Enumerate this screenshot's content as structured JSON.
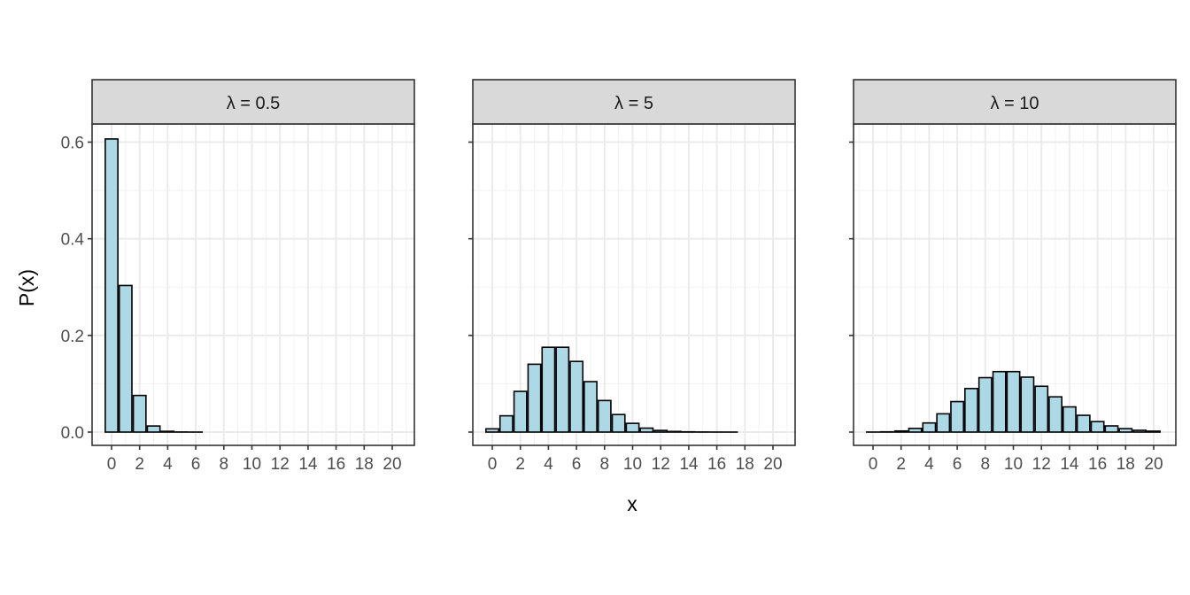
{
  "chart_data": {
    "type": "bar",
    "xlabel": "x",
    "ylabel": "P(x)",
    "ylim": [
      0,
      0.63
    ],
    "yticks": [
      "0.0",
      "0.2",
      "0.4",
      "0.6"
    ],
    "xticks": [
      "0",
      "2",
      "4",
      "6",
      "8",
      "10",
      "12",
      "14",
      "16",
      "18",
      "20"
    ],
    "x": [
      0,
      1,
      2,
      3,
      4,
      5,
      6,
      7,
      8,
      9,
      10,
      11,
      12,
      13,
      14,
      15,
      16,
      17,
      18,
      19,
      20
    ],
    "grid": true,
    "bar_fill": "#add8e6",
    "bar_stroke": "#000000",
    "panels": [
      {
        "strip": "λ = 0.5",
        "values": [
          0.6065,
          0.3033,
          0.0758,
          0.0126,
          0.0016,
          0.0002,
          1e-05,
          0,
          0,
          0,
          0,
          0,
          0,
          0,
          0,
          0,
          0,
          0,
          0,
          0,
          0
        ]
      },
      {
        "strip": "λ = 5",
        "values": [
          0.0067,
          0.0337,
          0.0842,
          0.1404,
          0.1755,
          0.1755,
          0.1462,
          0.1044,
          0.0653,
          0.0363,
          0.0181,
          0.0082,
          0.0034,
          0.0013,
          0.0005,
          0.0002,
          5e-05,
          1e-05,
          0,
          0,
          0
        ]
      },
      {
        "strip": "λ = 10",
        "values": [
          5e-05,
          0.0005,
          0.0023,
          0.0076,
          0.0189,
          0.0378,
          0.0631,
          0.0901,
          0.1126,
          0.1251,
          0.1251,
          0.1137,
          0.0948,
          0.0729,
          0.0521,
          0.0347,
          0.0217,
          0.0128,
          0.0071,
          0.0037,
          0.0019
        ]
      }
    ]
  }
}
